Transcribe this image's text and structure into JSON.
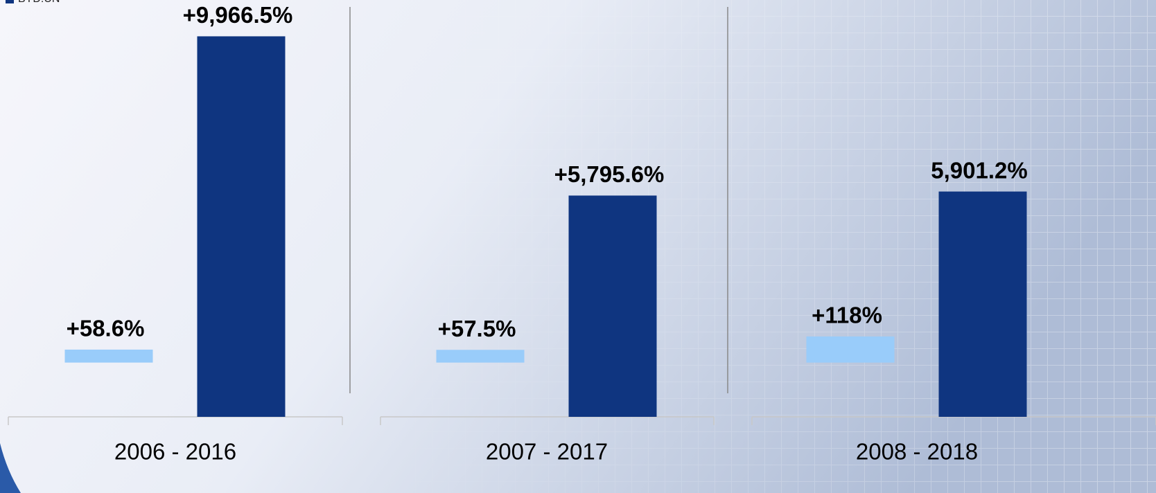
{
  "chart_data": {
    "type": "bar",
    "categories": [
      "2006 - 2016",
      "2007 - 2017",
      "2008 - 2018"
    ],
    "series": [
      {
        "color": "#99ccfa",
        "axis": "y2",
        "values": [
          58.6,
          57.5,
          118
        ],
        "value_labels": [
          "+58.6%",
          "+57.5%",
          "+118%"
        ]
      },
      {
        "name": "BYD:UN",
        "color": "#0f3580",
        "values": [
          9966.5,
          5795.6,
          5901.2
        ],
        "value_labels": [
          "+9,966.5%",
          "+5,795.6%",
          "5,901.2%"
        ]
      }
    ],
    "ylim": [
      0,
      10700
    ],
    "y2lim": [
      -245,
      1600
    ],
    "legend": "top-left"
  }
}
